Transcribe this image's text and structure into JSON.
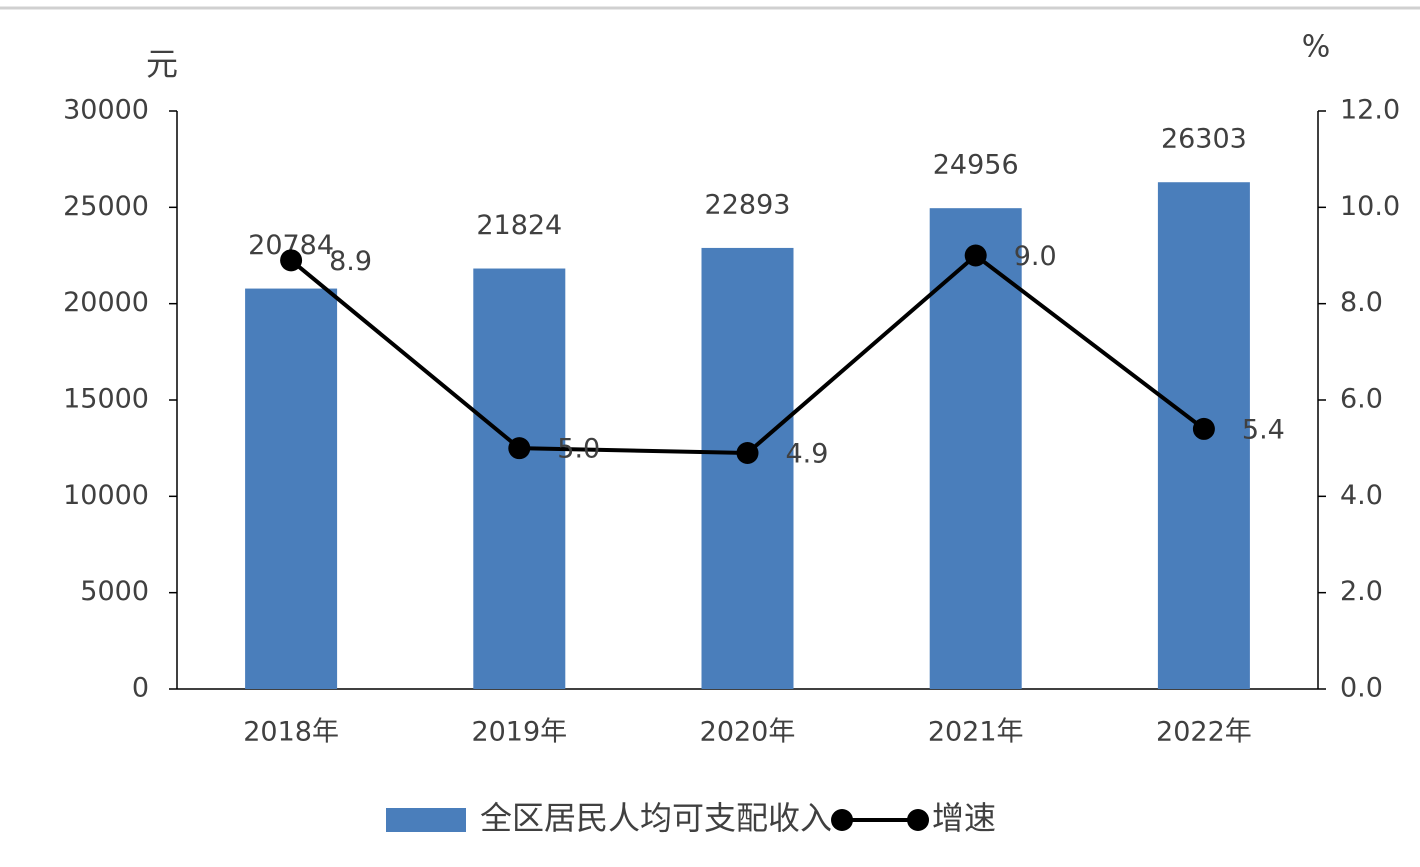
{
  "chart_data": {
    "type": "bar",
    "ylabel": "元",
    "y2label": "%",
    "categories": [
      "2018年",
      "2019年",
      "2020年",
      "2021年",
      "2022年"
    ],
    "series": [
      {
        "name": "全区居民人均可支配收入",
        "type": "bar",
        "color": "#4a7ebb",
        "values": [
          20784,
          21824,
          22893,
          24956,
          26303
        ]
      },
      {
        "name": "增速",
        "type": "line",
        "color": "#000000",
        "axis": "y2",
        "values": [
          8.9,
          5.0,
          4.9,
          9.0,
          5.4
        ],
        "value_labels": [
          "8.9",
          "5.0",
          "4.9",
          "9.0",
          "5.4"
        ]
      }
    ],
    "ylim": [
      0,
      30000
    ],
    "yticks": [
      0,
      5000,
      10000,
      15000,
      20000,
      25000,
      30000
    ],
    "y2lim": [
      0,
      12
    ],
    "y2ticks": [
      {
        "value": 0,
        "label": "0.0"
      },
      {
        "value": 2,
        "label": "2.0"
      },
      {
        "value": 4,
        "label": "4.0"
      },
      {
        "value": 6,
        "label": "6.0"
      },
      {
        "value": 8,
        "label": "8.0"
      },
      {
        "value": 10,
        "label": "10.0"
      },
      {
        "value": 12,
        "label": "12.0"
      }
    ],
    "grid": false
  }
}
